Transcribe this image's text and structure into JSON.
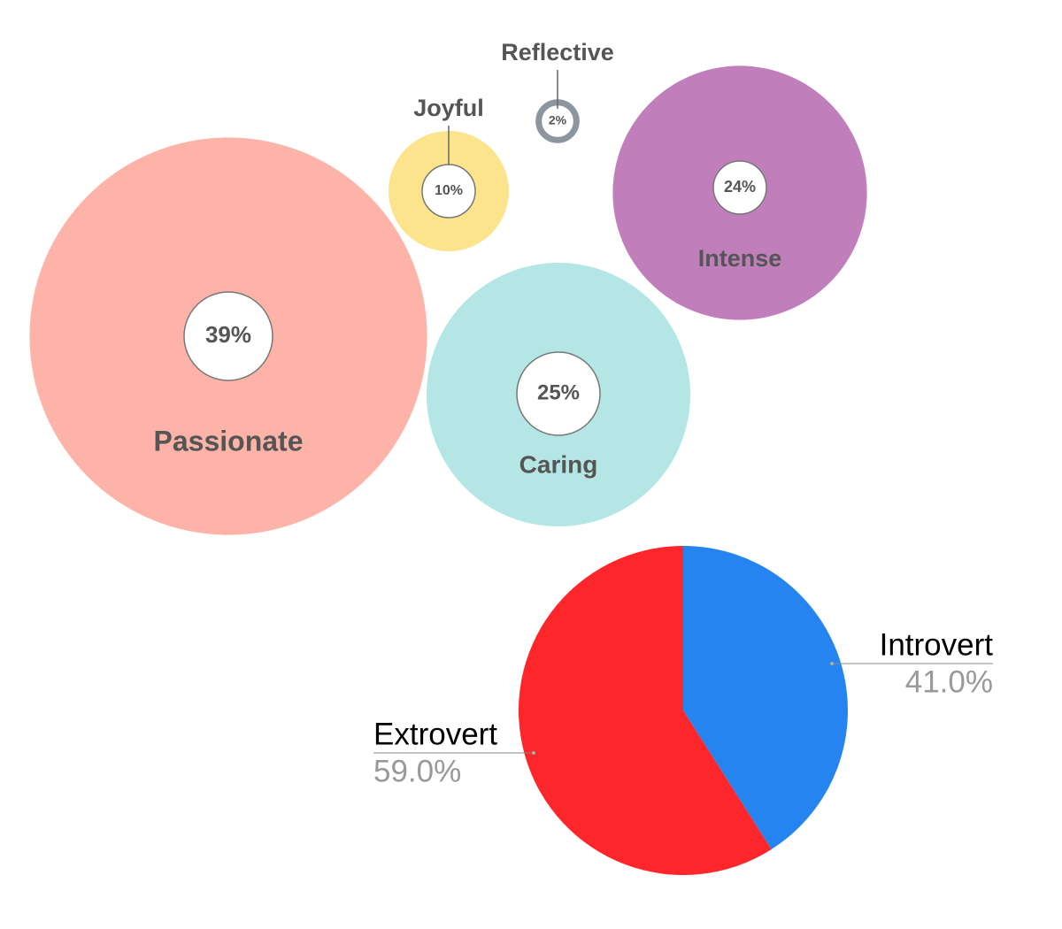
{
  "chart_data": [
    {
      "type": "bubble",
      "categories": [
        "Passionate",
        "Caring",
        "Intense",
        "Joyful",
        "Reflective"
      ],
      "values": [
        39,
        25,
        24,
        10,
        2
      ],
      "value_labels": [
        "39%",
        "25%",
        "24%",
        "10%",
        "2%"
      ],
      "colors": [
        "#fdb3a8",
        "#b3e6e4",
        "#c07fba",
        "#fbe48c",
        "#8d969e"
      ]
    },
    {
      "type": "pie",
      "categories": [
        "Introvert",
        "Extrovert"
      ],
      "values": [
        41.0,
        59.0
      ],
      "value_labels": [
        "41.0%",
        "59.0%"
      ],
      "colors": [
        "#2684f0",
        "#fc262b"
      ]
    }
  ]
}
